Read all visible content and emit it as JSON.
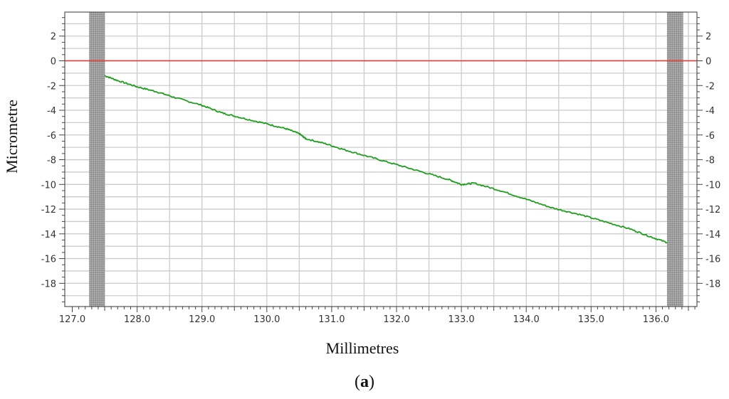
{
  "chart_data": {
    "type": "line",
    "xlabel": "Millimetres",
    "ylabel": "Micrometre",
    "caption": {
      "open": "(",
      "letter": "a",
      "close": ")"
    },
    "xlim": [
      127.0,
      136.6
    ],
    "ylim": [
      -20,
      3.8
    ],
    "x_ticks": [
      127.0,
      128.0,
      129.0,
      130.0,
      131.0,
      132.0,
      133.0,
      134.0,
      135.0,
      136.0
    ],
    "x_tick_labels": [
      "127.0",
      "128.0",
      "129.0",
      "130.0",
      "131.0",
      "132.0",
      "133.0",
      "134.0",
      "135.0",
      "136.0"
    ],
    "y_ticks": [
      2,
      0,
      -2,
      -4,
      -6,
      -8,
      -10,
      -12,
      -14,
      -16,
      -18
    ],
    "y_tick_labels": [
      "2",
      "0",
      "-2",
      "-4",
      "-6",
      "-8",
      "-10",
      "-12",
      "-14",
      "-16",
      "-18"
    ],
    "grid": true,
    "reference_line": {
      "y": 0,
      "color": "#e8312b"
    },
    "excluded_bands": [
      {
        "x": [
          127.26,
          127.5
        ]
      },
      {
        "x": [
          136.17,
          136.42
        ]
      }
    ],
    "series": [
      {
        "color": "#1f9e1f",
        "x": [
          127.5,
          127.7,
          128.0,
          128.3,
          128.6,
          129.0,
          129.3,
          129.6,
          130.0,
          130.3,
          130.5,
          130.6,
          130.9,
          131.2,
          131.6,
          132.0,
          132.4,
          132.8,
          133.0,
          133.2,
          133.6,
          134.0,
          134.4,
          134.8,
          135.2,
          135.6,
          135.9,
          136.17
        ],
        "y": [
          -1.2,
          -1.6,
          -2.1,
          -2.5,
          -3.0,
          -3.6,
          -4.2,
          -4.6,
          -5.1,
          -5.5,
          -5.9,
          -6.3,
          -6.7,
          -7.2,
          -7.8,
          -8.4,
          -9.0,
          -9.6,
          -10.0,
          -9.9,
          -10.5,
          -11.2,
          -11.9,
          -12.4,
          -13.0,
          -13.6,
          -14.2,
          -14.7
        ]
      }
    ]
  }
}
